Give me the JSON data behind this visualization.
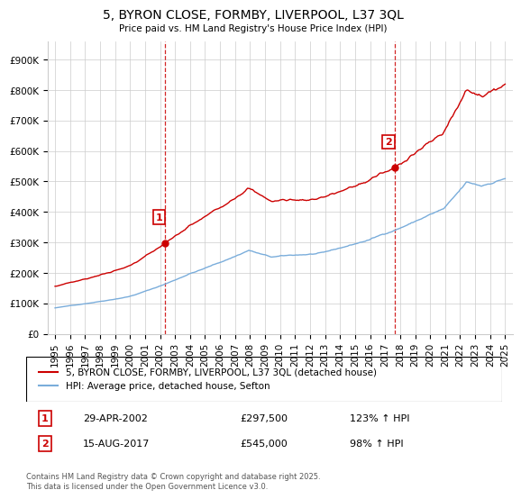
{
  "title": "5, BYRON CLOSE, FORMBY, LIVERPOOL, L37 3QL",
  "subtitle": "Price paid vs. HM Land Registry's House Price Index (HPI)",
  "xlim": [
    1994.5,
    2025.5
  ],
  "ylim": [
    0,
    960000
  ],
  "yticks": [
    0,
    100000,
    200000,
    300000,
    400000,
    500000,
    600000,
    700000,
    800000,
    900000
  ],
  "ytick_labels": [
    "£0",
    "£100K",
    "£200K",
    "£300K",
    "£400K",
    "£500K",
    "£600K",
    "£700K",
    "£800K",
    "£900K"
  ],
  "xticks": [
    1995,
    1996,
    1997,
    1998,
    1999,
    2000,
    2001,
    2002,
    2003,
    2004,
    2005,
    2006,
    2007,
    2008,
    2009,
    2010,
    2011,
    2012,
    2013,
    2014,
    2015,
    2016,
    2017,
    2018,
    2019,
    2020,
    2021,
    2022,
    2023,
    2024,
    2025
  ],
  "hpi_line_color": "#7aaddb",
  "price_line_color": "#cc0000",
  "vline_color": "#cc0000",
  "annotation_box_color": "#cc0000",
  "background_color": "#ffffff",
  "grid_color": "#cccccc",
  "legend_label_price": "5, BYRON CLOSE, FORMBY, LIVERPOOL, L37 3QL (detached house)",
  "legend_label_hpi": "HPI: Average price, detached house, Sefton",
  "transaction1_x": 2002.33,
  "transaction1_y": 297500,
  "transaction1_label": "1",
  "transaction1_date": "29-APR-2002",
  "transaction1_price": "£297,500",
  "transaction1_hpi": "123% ↑ HPI",
  "transaction2_x": 2017.62,
  "transaction2_y": 545000,
  "transaction2_label": "2",
  "transaction2_date": "15-AUG-2017",
  "transaction2_price": "£545,000",
  "transaction2_hpi": "98% ↑ HPI",
  "footer": "Contains HM Land Registry data © Crown copyright and database right 2025.\nThis data is licensed under the Open Government Licence v3.0.",
  "title_fontsize": 10,
  "tick_fontsize": 7.5,
  "legend_fontsize": 7.5,
  "footer_fontsize": 6.0,
  "hpi_seed": 42,
  "price_seed": 7
}
